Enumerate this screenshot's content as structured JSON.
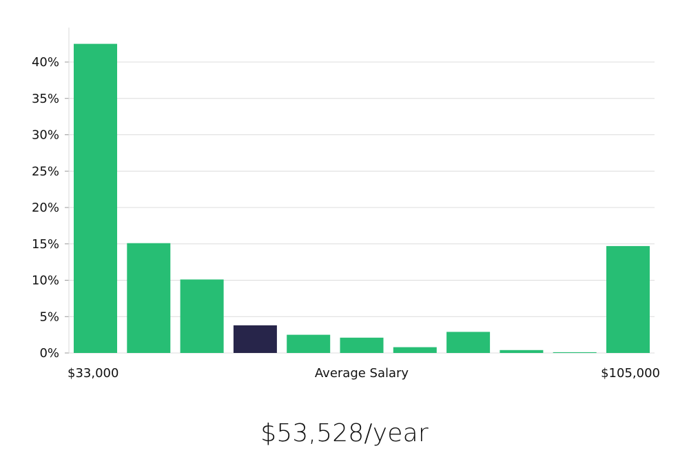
{
  "chart_data": {
    "type": "bar",
    "categories": [
      "1",
      "2",
      "3",
      "4",
      "5",
      "6",
      "7",
      "8",
      "9",
      "10",
      "11"
    ],
    "values": [
      42.5,
      15.1,
      10.1,
      3.8,
      2.5,
      2.1,
      0.8,
      2.9,
      0.4,
      0.1,
      14.7
    ],
    "highlight_index": 3,
    "ylim": [
      0,
      45
    ],
    "yticks": [
      0,
      5,
      10,
      15,
      20,
      25,
      30,
      35,
      40
    ],
    "ytick_labels": [
      "0%",
      "5%",
      "10%",
      "15%",
      "20%",
      "25%",
      "30%",
      "35%",
      "40%"
    ],
    "x_min_label": "$33,000",
    "xlabel": "Average Salary",
    "x_max_label": "$105,000",
    "grid": true,
    "bar_color": "#27BE74",
    "highlight_color": "#27254A"
  },
  "summary": {
    "salary_text": "$53,528/year"
  }
}
